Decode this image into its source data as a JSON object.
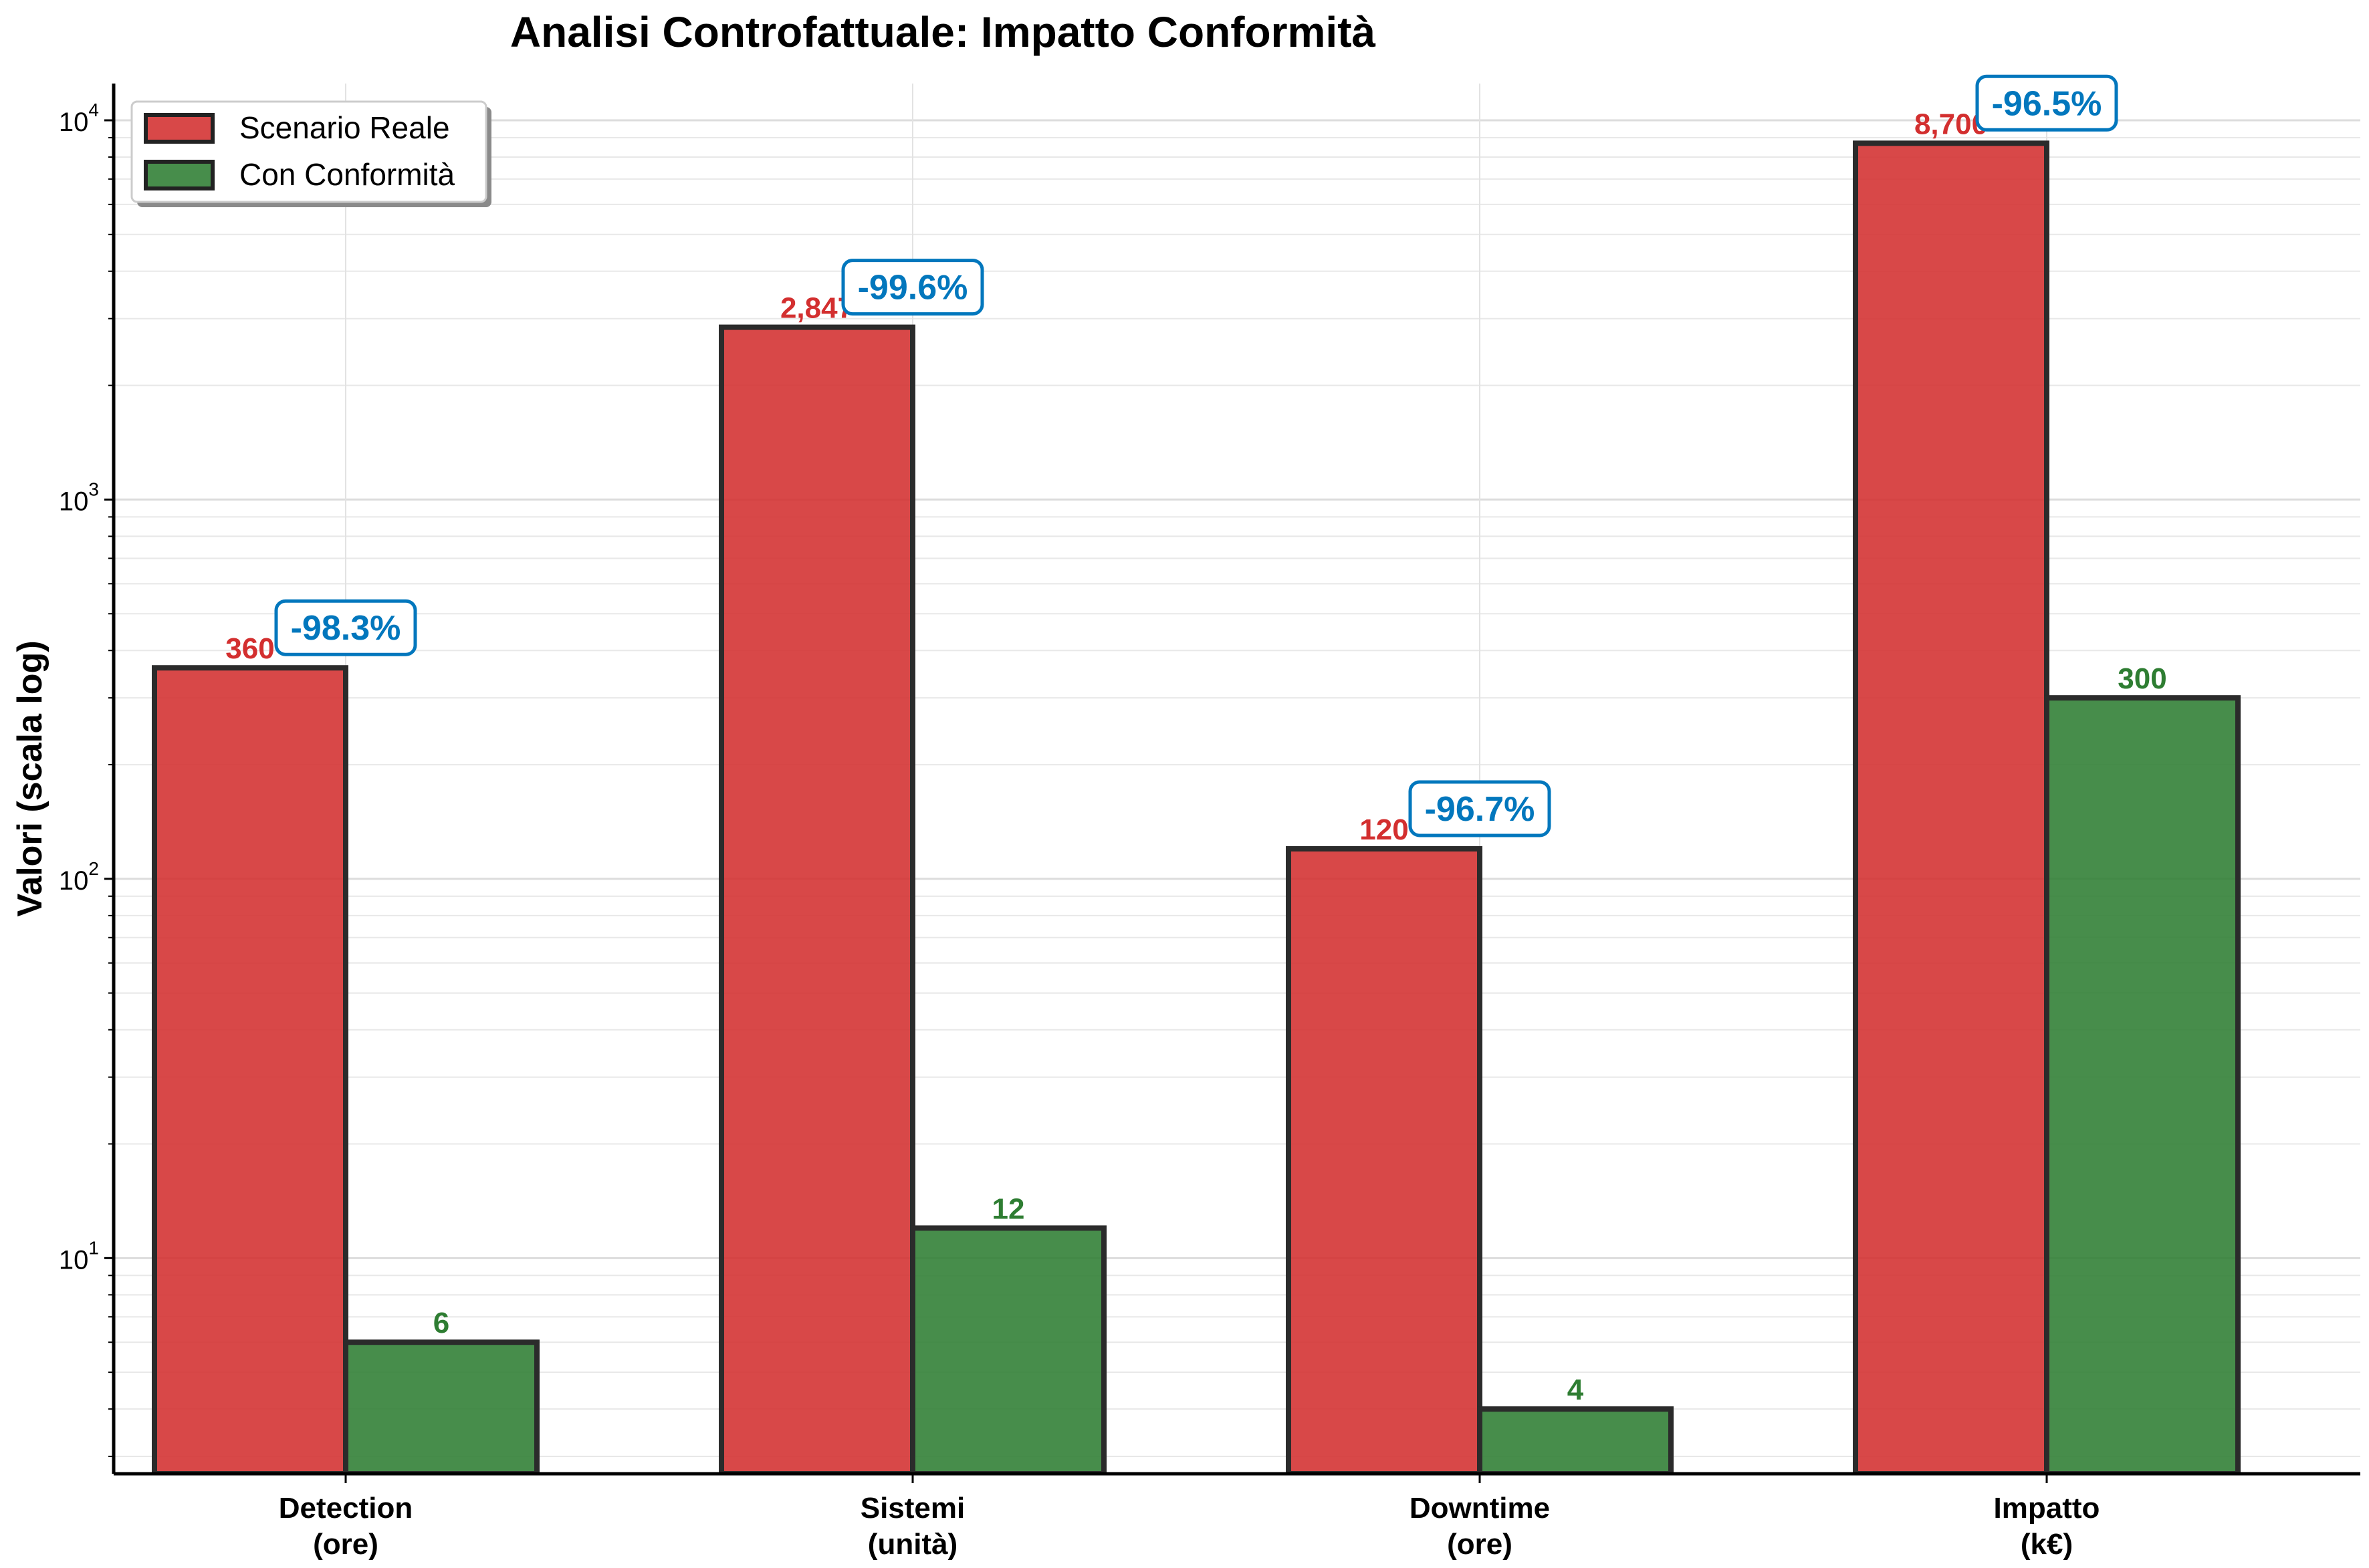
{
  "chart_data": {
    "type": "bar",
    "title": "Analisi Controfattuale: Impatto Conformità",
    "xlabel": "",
    "ylabel": "Valori (scala log)",
    "yscale": "log",
    "ylim": [
      2.7,
      12500
    ],
    "yticks": [
      {
        "value": 10,
        "base": "10",
        "exp": "1"
      },
      {
        "value": 100,
        "base": "10",
        "exp": "2"
      },
      {
        "value": 1000,
        "base": "10",
        "exp": "3"
      },
      {
        "value": 10000,
        "base": "10",
        "exp": "4"
      }
    ],
    "grid": true,
    "legend_position": "top-left",
    "categories": [
      [
        "Detection",
        "(ore)"
      ],
      [
        "Sistemi",
        "(unità)"
      ],
      [
        "Downtime",
        "(ore)"
      ],
      [
        "Impatto",
        "(k€)"
      ]
    ],
    "series": [
      {
        "name": "Scenario Reale",
        "color": "#d32f2f",
        "values": [
          360,
          2847,
          120,
          8700
        ],
        "labels": [
          "360",
          "2,847",
          "120",
          "8,700"
        ]
      },
      {
        "name": "Con Conformità",
        "color": "#2e7d32",
        "values": [
          6,
          12,
          4,
          300
        ],
        "labels": [
          "6",
          "12",
          "4",
          "300"
        ]
      }
    ],
    "reductions": [
      "-98.3%",
      "-99.6%",
      "-96.7%",
      "-96.5%"
    ],
    "reduction_color": "#0277bd"
  }
}
